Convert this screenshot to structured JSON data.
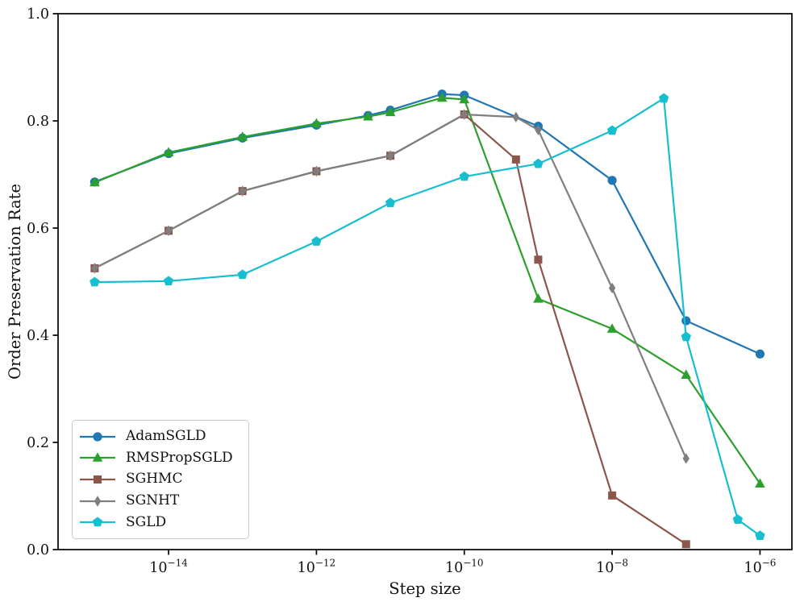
{
  "figure": {
    "xlabel": "Step size",
    "ylabel": "Order Preservation Rate"
  },
  "chart_data": {
    "type": "line",
    "title": "",
    "xlabel": "Step size",
    "ylabel": "Order Preservation Rate",
    "x_scale": "log",
    "xlim": [
      3.2e-16,
      2.7e-06
    ],
    "ylim": [
      0.0,
      1.0
    ],
    "grid": false,
    "legend_position": "lower left",
    "x_ticks": [
      {
        "value": 1e-14,
        "base": "10",
        "exponent": "−14"
      },
      {
        "value": 1e-12,
        "base": "10",
        "exponent": "−12"
      },
      {
        "value": 1e-10,
        "base": "10",
        "exponent": "−10"
      },
      {
        "value": 1e-08,
        "base": "10",
        "exponent": "−8"
      },
      {
        "value": 1e-06,
        "base": "10",
        "exponent": "−6"
      }
    ],
    "y_ticks": [
      {
        "value": 0.0,
        "label": "0.0"
      },
      {
        "value": 0.2,
        "label": "0.2"
      },
      {
        "value": 0.4,
        "label": "0.4"
      },
      {
        "value": 0.6,
        "label": "0.6"
      },
      {
        "value": 0.8,
        "label": "0.8"
      },
      {
        "value": 1.0,
        "label": "1.0"
      }
    ],
    "series": [
      {
        "name": "AdamSGLD",
        "color": "#1f77b4",
        "marker": "circle",
        "points": [
          [
            1e-15,
            0.686
          ],
          [
            1e-14,
            0.739
          ],
          [
            1e-13,
            0.768
          ],
          [
            1e-12,
            0.792
          ],
          [
            5e-12,
            0.81
          ],
          [
            1e-11,
            0.82
          ],
          [
            5e-11,
            0.85
          ],
          [
            1e-10,
            0.848
          ],
          [
            1e-09,
            0.79
          ],
          [
            1e-08,
            0.689
          ],
          [
            1e-07,
            0.427
          ],
          [
            1e-06,
            0.365
          ]
        ]
      },
      {
        "name": "RMSPropSGLD",
        "color": "#2ca02c",
        "marker": "triangle-up",
        "points": [
          [
            1e-15,
            0.685
          ],
          [
            1e-14,
            0.741
          ],
          [
            1e-13,
            0.77
          ],
          [
            1e-12,
            0.795
          ],
          [
            5e-12,
            0.808
          ],
          [
            1e-11,
            0.816
          ],
          [
            5e-11,
            0.843
          ],
          [
            1e-10,
            0.84
          ],
          [
            1e-09,
            0.468
          ],
          [
            1e-08,
            0.412
          ],
          [
            1e-07,
            0.326
          ],
          [
            1e-06,
            0.123
          ]
        ]
      },
      {
        "name": "SGHMC",
        "color": "#8c564b",
        "marker": "square",
        "points": [
          [
            1e-15,
            0.525
          ],
          [
            1e-14,
            0.595
          ],
          [
            1e-13,
            0.669
          ],
          [
            1e-12,
            0.706
          ],
          [
            1e-11,
            0.735
          ],
          [
            1e-10,
            0.812
          ],
          [
            5e-10,
            0.728
          ],
          [
            1e-09,
            0.541
          ],
          [
            1e-08,
            0.101
          ],
          [
            1e-07,
            0.01
          ]
        ]
      },
      {
        "name": "SGNHT",
        "color": "#7f7f7f",
        "marker": "diamond",
        "points": [
          [
            1e-15,
            0.525
          ],
          [
            1e-14,
            0.595
          ],
          [
            1e-13,
            0.669
          ],
          [
            1e-12,
            0.706
          ],
          [
            1e-11,
            0.735
          ],
          [
            1e-10,
            0.812
          ],
          [
            5e-10,
            0.807
          ],
          [
            1e-09,
            0.783
          ],
          [
            1e-08,
            0.488
          ],
          [
            1e-07,
            0.17
          ]
        ]
      },
      {
        "name": "SGLD",
        "color": "#17becf",
        "marker": "pentagon",
        "points": [
          [
            1e-15,
            0.499
          ],
          [
            1e-14,
            0.501
          ],
          [
            1e-13,
            0.513
          ],
          [
            1e-12,
            0.575
          ],
          [
            1e-11,
            0.647
          ],
          [
            1e-10,
            0.696
          ],
          [
            1e-09,
            0.72
          ],
          [
            1e-08,
            0.782
          ],
          [
            5e-08,
            0.842
          ],
          [
            1e-07,
            0.397
          ],
          [
            5e-07,
            0.056
          ],
          [
            1e-06,
            0.026
          ]
        ]
      }
    ]
  }
}
